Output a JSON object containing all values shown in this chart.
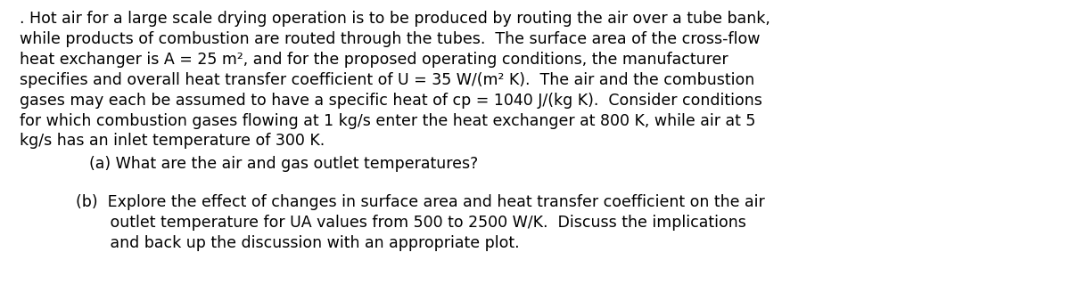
{
  "background_color": "#ffffff",
  "text_color": "#000000",
  "figsize": [
    12.0,
    3.2
  ],
  "dpi": 100,
  "paragraph1": ". Hot air for a large scale drying operation is to be produced by routing the air over a tube bank,\nwhile products of combustion are routed through the tubes.  The surface area of the cross-flow\nheat exchanger is A = 25 m², and for the proposed operating conditions, the manufacturer\nspecifies and overall heat transfer coefficient of U = 35 W/(m² K).  The air and the combustion\ngases may each be assumed to have a specific heat of cp = 1040 J/(kg K).  Consider conditions\nfor which combustion gases flowing at 1 kg/s enter the heat exchanger at 800 K, while air at 5\nkg/s has an inlet temperature of 300 K.",
  "part_a": "(a) What are the air and gas outlet temperatures?",
  "part_b_line1": "(b)  Explore the effect of changes in surface area and heat transfer coefficient on the air",
  "part_b_line2": "       outlet temperature for UA values from 500 to 2500 W/K.  Discuss the implications",
  "part_b_line3": "       and back up the discussion with an appropriate plot.",
  "font_size": 12.5,
  "linespacing": 1.35
}
